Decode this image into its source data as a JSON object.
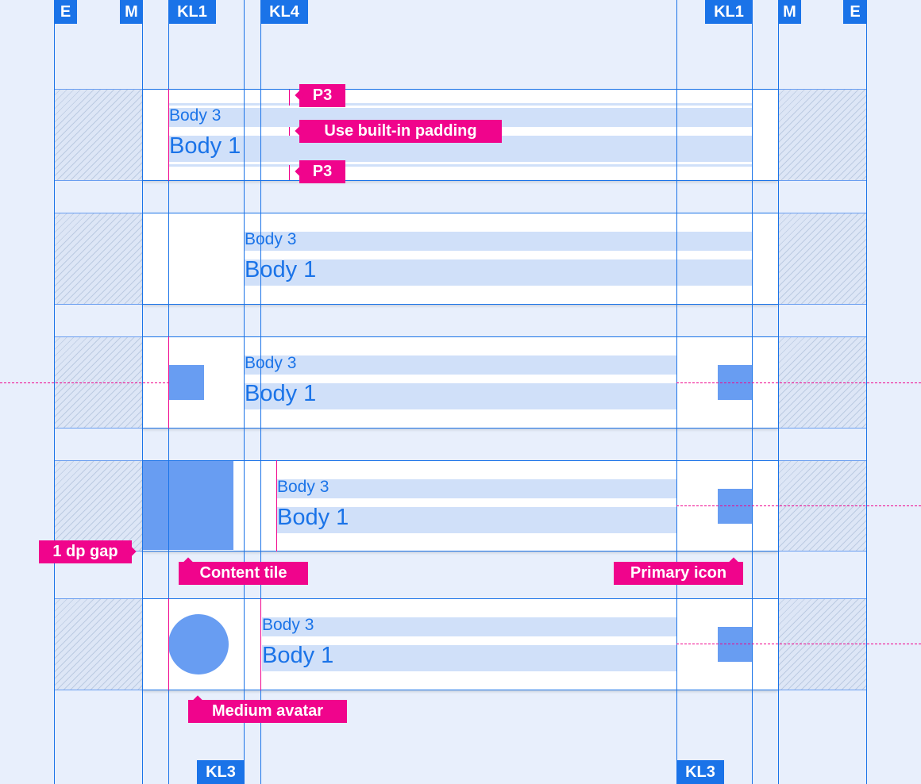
{
  "keylines_top": [
    "E",
    "M",
    "KL1",
    "KL4",
    "KL1",
    "M",
    "E"
  ],
  "keylines_bottom": [
    "KL3",
    "KL3"
  ],
  "rows": [
    {
      "caption": "Body 3",
      "title": "Body 1"
    },
    {
      "caption": "Body 3",
      "title": "Body 1"
    },
    {
      "caption": "Body 3",
      "title": "Body 1"
    },
    {
      "caption": "Body 3",
      "title": "Body 1"
    },
    {
      "caption": "Body 3",
      "title": "Body 1"
    }
  ],
  "annotations": {
    "p3_top": "P3",
    "padding": "Use built-in padding",
    "p3_bottom": "P3",
    "gap": "1 dp gap",
    "content_tile": "Content tile",
    "primary_icon": "Primary icon",
    "medium_avatar": "Medium avatar"
  },
  "colors": {
    "keyline": "#1a73e8",
    "annotation": "#f0048c",
    "placeholder": "#689df2",
    "text_highlight": "#d0e0f9"
  }
}
